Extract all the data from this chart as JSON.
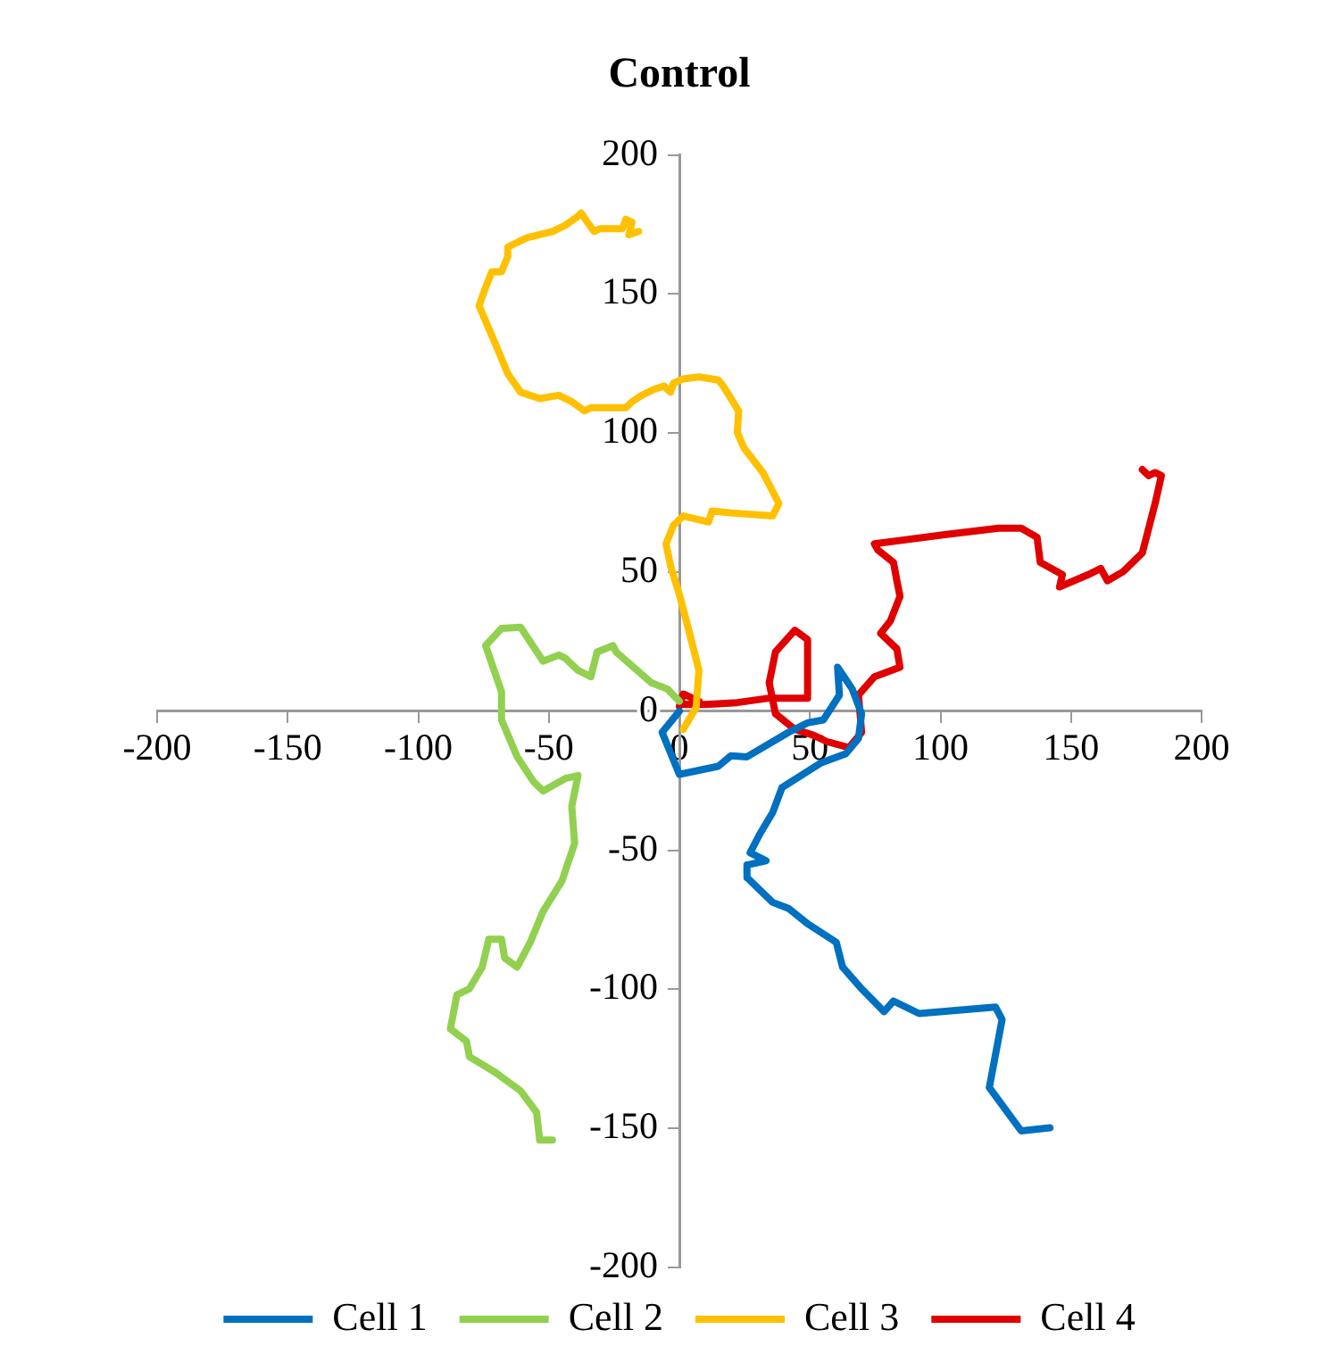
{
  "chart_data": {
    "type": "line",
    "title": "Control",
    "xlim": [
      -200,
      200
    ],
    "ylim": [
      -200,
      200
    ],
    "xticks": [
      -200,
      -150,
      -100,
      -50,
      0,
      50,
      100,
      150,
      200
    ],
    "yticks": [
      -200,
      -150,
      -100,
      -50,
      0,
      50,
      100,
      150,
      200
    ],
    "grid": false,
    "legend": "bottom",
    "marker": "none",
    "series": [
      {
        "name": "Cell 1",
        "color": "#0070c0",
        "x": [
          0,
          -6.6,
          0,
          14.9,
          19.8,
          25.9,
          41.8,
          49.1,
          55.2,
          61.3,
          60.6,
          66.2,
          69.8,
          68.6,
          63.7,
          54,
          39.3,
          35.7,
          30.8,
          27.1,
          33.2,
          25.9,
          25.9,
          35.7,
          41.8,
          49.1,
          60.1,
          62.5,
          69.8,
          78.4,
          82,
          91.8,
          121.1,
          123.6,
          118.7,
          130.9,
          141.9
        ],
        "values": [
          0,
          -7.6,
          -22.7,
          -19.8,
          -16,
          -16.4,
          -7.6,
          -4.2,
          -3.1,
          5.8,
          15.8,
          8,
          -0.9,
          -9.8,
          -15.3,
          -18.7,
          -27.5,
          -36.5,
          -44.2,
          -50.9,
          -53.8,
          -55.3,
          -59.8,
          -68.7,
          -70.9,
          -76.4,
          -83.1,
          -92,
          -99.8,
          -108,
          -104.2,
          -108.7,
          -106.4,
          -110.9,
          -135.3,
          -150.9,
          -149.8
        ]
      },
      {
        "name": "Cell 2",
        "color": "#92d050",
        "x": [
          0,
          -4.6,
          -10.7,
          -24.2,
          -25.4,
          -31.5,
          -33.9,
          -38.8,
          -43.7,
          -46.2,
          -52.2,
          -60.8,
          -68.1,
          -74.2,
          -68.1,
          -68.1,
          -62.1,
          -55.9,
          -52.2,
          -43.7,
          -38.8,
          -41.2,
          -40.1,
          -44.9,
          -52.2,
          -57.1,
          -62.1,
          -66.9,
          -68.1,
          -73,
          -75.5,
          -80.4,
          -85.2,
          -87.7,
          -81.5,
          -80.4,
          -70.6,
          -60.8,
          -54.7,
          -53.5,
          -48.6
        ],
        "values": [
          3.6,
          8,
          10.2,
          21.3,
          23.6,
          21.3,
          12.4,
          14.7,
          19.1,
          20.2,
          18,
          30.2,
          29.8,
          23.6,
          6.9,
          -3.1,
          -16.4,
          -25.3,
          -28.7,
          -24.2,
          -23.1,
          -34.2,
          -47.5,
          -60.9,
          -72,
          -83.1,
          -92,
          -88.7,
          -82,
          -82,
          -92,
          -99.8,
          -102,
          -114.2,
          -118.7,
          -124.2,
          -129.8,
          -136.5,
          -144.2,
          -154.2,
          -154.2
        ]
      },
      {
        "name": "Cell 3",
        "color": "#ffc000",
        "x": [
          1.5,
          6.4,
          7.5,
          3.9,
          0.2,
          -3.4,
          -5.1,
          -2.2,
          1.5,
          11.2,
          12.5,
          19.8,
          35.7,
          38.1,
          32,
          24.7,
          22.2,
          22.7,
          19.8,
          16.8,
          14.9,
          7.5,
          1.5,
          -2.2,
          -3.4,
          -5.9,
          -9.5,
          -14.4,
          -18.1,
          -20.5,
          -24.2,
          -33.9,
          -36.4,
          -41.2,
          -46.2,
          -53.5,
          -60.8,
          -65.7,
          -70.6,
          -74.2,
          -76.7,
          -74.2,
          -71.8,
          -68.1,
          -65.7,
          -65.7,
          -58.4,
          -48.6,
          -43.7,
          -38.8,
          -37.6,
          -35.2,
          -32.7,
          -30.3,
          -21.8,
          -20.5,
          -18.1,
          -19.3,
          -15.6
        ],
        "values": [
          -6.5,
          1.3,
          14.7,
          28,
          41.3,
          52.4,
          60.2,
          66.9,
          70.2,
          68,
          72,
          71.3,
          70.2,
          74.7,
          85.8,
          94.7,
          100.2,
          108,
          112.4,
          116.9,
          119.1,
          120.2,
          119.5,
          118,
          114.7,
          116.9,
          115.8,
          113.6,
          111.3,
          109.1,
          109.1,
          109.1,
          108,
          111.3,
          113.6,
          112.4,
          114.7,
          121.3,
          132.4,
          140.2,
          145.8,
          152.4,
          158,
          158,
          163.5,
          166.9,
          170.2,
          172.5,
          174.7,
          178,
          179.1,
          175.8,
          172.5,
          173.5,
          173.5,
          176.9,
          175.8,
          171.3,
          172.5
        ]
      },
      {
        "name": "Cell 4",
        "color": "#e00000",
        "x": [
          0,
          1.5,
          7.5,
          1.5,
          10,
          22.2,
          34.4,
          49.1,
          49.1,
          44.2,
          36.8,
          34.4,
          36.8,
          44.2,
          51.5,
          56.4,
          65,
          69.8,
          68.6,
          74.7,
          84.5,
          83.3,
          77.1,
          80.8,
          84.5,
          83.3,
          82,
          76,
          74.7,
          101.6,
          122.3,
          130.9,
          137,
          138.2,
          146.7,
          145.6,
          156.6,
          161.4,
          163.9,
          170,
          177.3,
          182.2,
          184.6,
          182.2,
          179.7,
          177.3
        ],
        "values": [
          1.8,
          6.2,
          3.6,
          2.4,
          2.4,
          3.1,
          4.7,
          4.7,
          25.8,
          29.1,
          21.3,
          10.2,
          -0.9,
          -6.5,
          -8.7,
          -10.9,
          -13.1,
          -7.6,
          5.8,
          12.4,
          15.8,
          22.4,
          28,
          32.4,
          41.3,
          46.9,
          53.5,
          58,
          60.2,
          63.5,
          65.8,
          65.8,
          62.5,
          53.5,
          49.1,
          44.7,
          49.1,
          51.3,
          46.9,
          50.2,
          56.9,
          74.7,
          84.7,
          85.8,
          84.7,
          86.9
        ]
      }
    ]
  }
}
